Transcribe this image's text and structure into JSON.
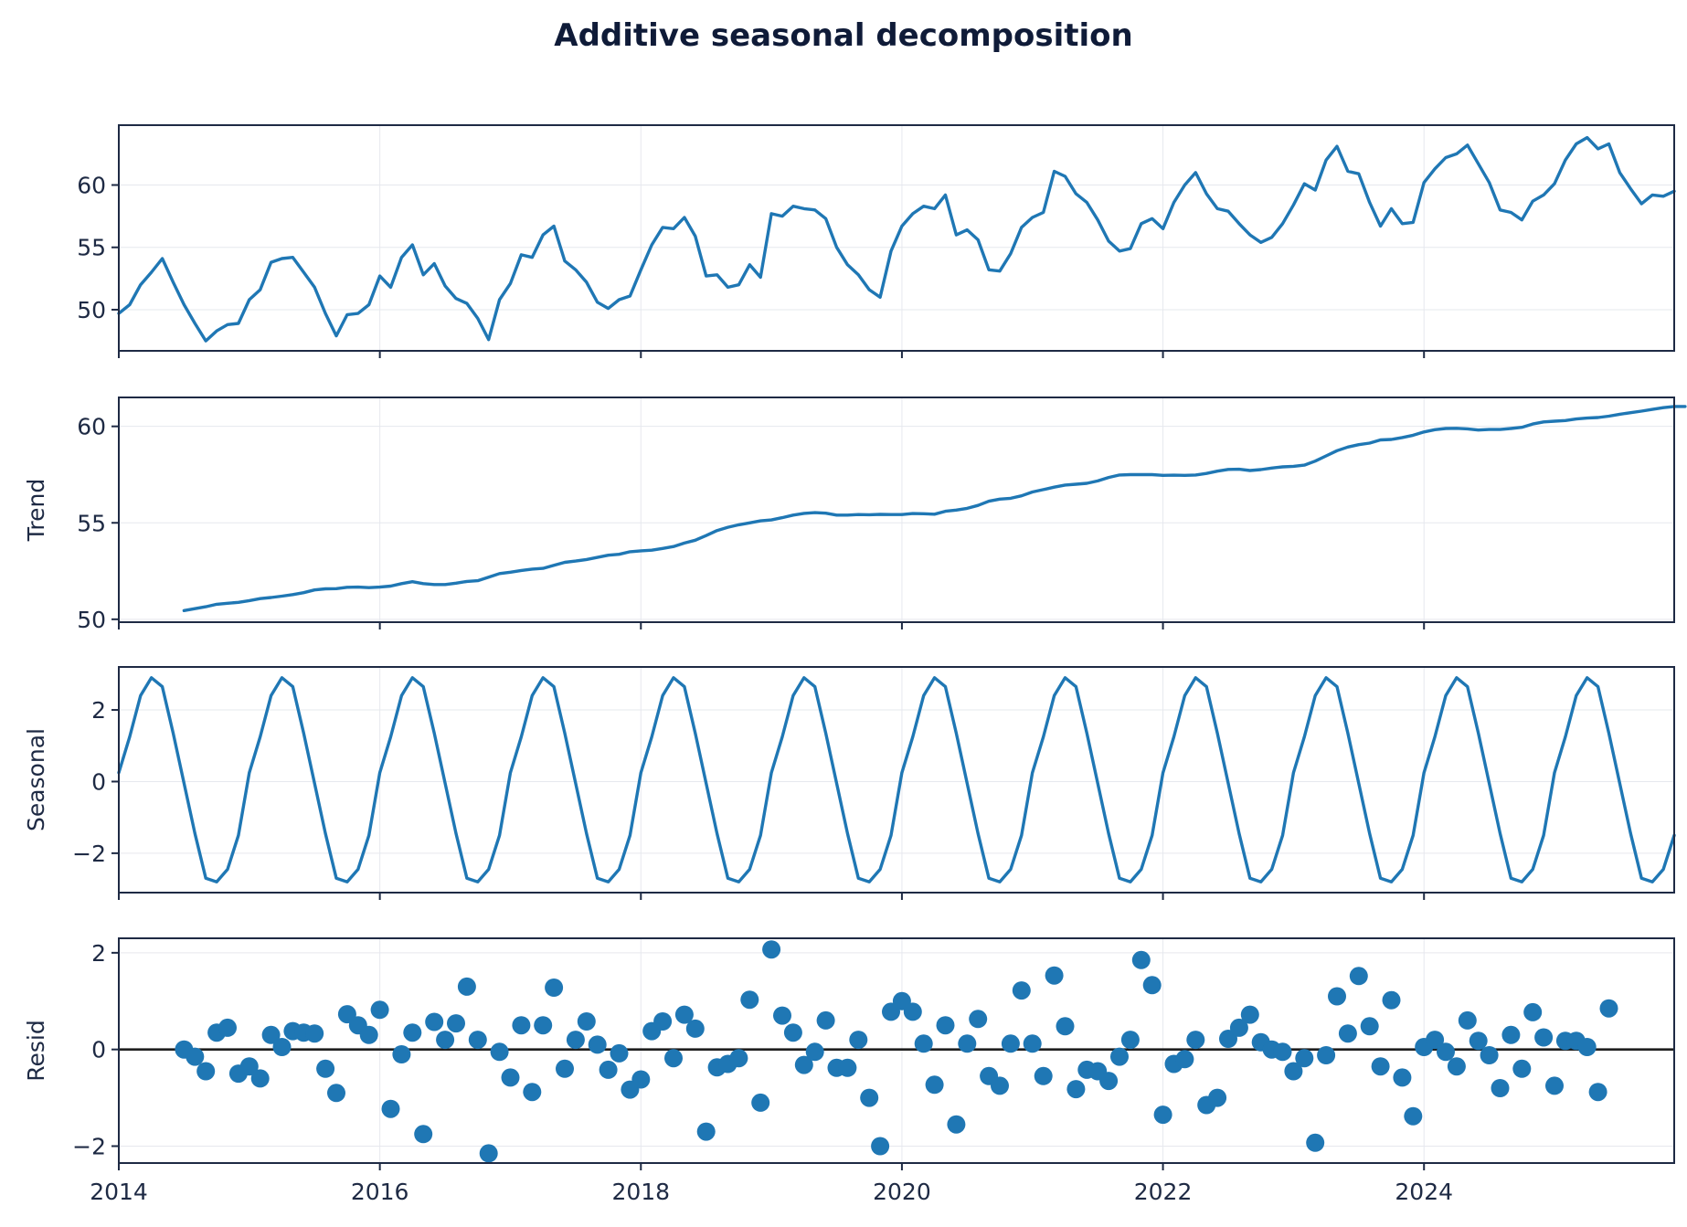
{
  "colors": {
    "series": "#1f77b4",
    "axis": "#1e2a44",
    "title": "#0f1b38",
    "grid": "#e6e8ee",
    "zero_line": "#1f1f1f"
  },
  "chart_data": {
    "type": "line",
    "title": "Additive seasonal decomposition",
    "x_start": "2014-01",
    "frequency": "monthly",
    "xlim": [
      2014.0,
      2025.917
    ],
    "x_ticks": [
      2014,
      2016,
      2018,
      2020,
      2022,
      2024
    ],
    "x_tick_labels": [
      "2014",
      "2016",
      "2018",
      "2020",
      "2022",
      "2024"
    ],
    "grid": true,
    "panels": [
      {
        "id": "observed",
        "ylabel": "",
        "kind": "line",
        "ylim": [
          46.7,
          64.8
        ],
        "y_ticks": [
          50,
          55,
          60
        ],
        "y_tick_labels": [
          "50",
          "55",
          "60"
        ],
        "values": [
          49.7,
          50.4,
          52.0,
          53.0,
          54.1,
          52.2,
          50.4,
          48.9,
          47.5,
          48.3,
          48.8,
          48.9,
          50.8,
          51.6,
          53.8,
          54.1,
          54.2,
          53.0,
          51.8,
          49.7,
          47.9,
          49.6,
          49.7,
          50.4,
          52.7,
          51.8,
          54.2,
          55.2,
          52.8,
          53.7,
          51.9,
          50.9,
          50.5,
          49.3,
          47.6,
          50.8,
          52.1,
          54.4,
          54.2,
          56.0,
          56.7,
          53.9,
          53.2,
          52.2,
          50.6,
          50.1,
          50.8,
          51.1,
          53.2,
          55.2,
          56.6,
          56.5,
          57.4,
          55.9,
          52.7,
          52.8,
          51.8,
          52.0,
          53.6,
          52.6,
          57.7,
          57.5,
          58.3,
          58.1,
          58.0,
          57.3,
          55.0,
          53.6,
          52.8,
          51.6,
          51.0,
          54.7,
          56.7,
          57.7,
          58.3,
          58.1,
          59.2,
          56.0,
          56.4,
          55.6,
          53.2,
          53.1,
          54.5,
          56.6,
          57.4,
          57.8,
          61.1,
          60.7,
          59.3,
          58.6,
          57.2,
          55.5,
          54.7,
          54.9,
          56.9,
          57.3,
          56.5,
          58.6,
          60.0,
          61.0,
          59.3,
          58.1,
          57.9,
          56.9,
          56.0,
          55.4,
          55.8,
          56.9,
          58.4,
          60.1,
          59.6,
          62.0,
          63.1,
          61.1,
          60.9,
          58.6,
          56.7,
          58.1,
          56.9,
          57.0,
          60.2,
          61.3,
          62.2,
          62.5,
          63.2,
          61.7,
          60.2,
          58.0,
          57.8,
          57.2,
          58.7,
          59.2,
          60.1,
          62.0,
          63.3,
          63.8,
          62.9,
          63.3,
          61.0,
          59.7,
          58.5,
          59.2,
          59.1,
          59.5
        ]
      },
      {
        "id": "trend",
        "ylabel": "Trend",
        "kind": "line",
        "ylim": [
          49.85,
          61.5
        ],
        "y_ticks": [
          50,
          55,
          60
        ],
        "y_tick_labels": [
          "50",
          "55",
          "60"
        ],
        "values": [
          null,
          null,
          null,
          null,
          null,
          null,
          50.45,
          50.55,
          50.65,
          50.78,
          50.83,
          50.88,
          50.97,
          51.07,
          51.13,
          51.2,
          51.28,
          51.38,
          51.52,
          51.58,
          51.59,
          51.66,
          51.67,
          51.64,
          51.67,
          51.72,
          51.85,
          51.95,
          51.85,
          51.8,
          51.8,
          51.87,
          51.96,
          52.0,
          52.18,
          52.37,
          52.44,
          52.53,
          52.6,
          52.64,
          52.8,
          52.95,
          53.02,
          53.1,
          53.21,
          53.32,
          53.37,
          53.5,
          53.55,
          53.58,
          53.67,
          53.77,
          53.95,
          54.1,
          54.34,
          54.6,
          54.77,
          54.9,
          55.0,
          55.1,
          55.15,
          55.27,
          55.4,
          55.49,
          55.53,
          55.5,
          55.4,
          55.4,
          55.43,
          55.42,
          55.44,
          55.43,
          55.43,
          55.48,
          55.47,
          55.45,
          55.6,
          55.66,
          55.75,
          55.9,
          56.12,
          56.23,
          56.27,
          56.4,
          56.6,
          56.72,
          56.85,
          56.96,
          57.0,
          57.05,
          57.17,
          57.35,
          57.48,
          57.5,
          57.5,
          57.5,
          57.46,
          57.47,
          57.46,
          57.48,
          57.56,
          57.68,
          57.77,
          57.78,
          57.71,
          57.76,
          57.84,
          57.9,
          57.93,
          57.99,
          58.2,
          58.47,
          58.74,
          58.93,
          59.05,
          59.13,
          59.3,
          59.32,
          59.42,
          59.54,
          59.71,
          59.83,
          59.89,
          59.9,
          59.87,
          59.81,
          59.84,
          59.84,
          59.89,
          59.95,
          60.12,
          60.23,
          60.27,
          60.3,
          60.38,
          60.43,
          60.46,
          60.53,
          60.63,
          60.71,
          60.79,
          60.88,
          60.97,
          61.03,
          61.03,
          null,
          null,
          null,
          null,
          null,
          null
        ]
      },
      {
        "id": "seasonal",
        "ylabel": "Seasonal",
        "kind": "line",
        "ylim": [
          -3.1,
          3.2
        ],
        "y_ticks": [
          -2,
          0,
          2
        ],
        "y_tick_labels": [
          "−2",
          "0",
          "2"
        ],
        "pattern_12": [
          0.25,
          1.25,
          2.4,
          2.9,
          2.65,
          1.35,
          -0.05,
          -1.45,
          -2.7,
          -2.8,
          -2.45,
          -1.5
        ],
        "cycles": 12
      },
      {
        "id": "resid",
        "ylabel": "Resid",
        "kind": "scatter",
        "ylim": [
          -2.35,
          2.3
        ],
        "y_ticks": [
          -2,
          0,
          2
        ],
        "y_tick_labels": [
          "−2",
          "0",
          "2"
        ],
        "zero_line": true,
        "values": [
          null,
          null,
          null,
          null,
          null,
          null,
          0.0,
          -0.15,
          -0.45,
          0.35,
          0.45,
          -0.5,
          -0.35,
          -0.6,
          0.3,
          0.05,
          0.38,
          0.35,
          0.33,
          -0.4,
          -0.9,
          0.73,
          0.5,
          0.3,
          0.82,
          -1.23,
          -0.1,
          0.35,
          -1.75,
          0.57,
          0.2,
          0.54,
          1.3,
          0.2,
          -2.15,
          -0.05,
          -0.58,
          0.5,
          -0.88,
          0.5,
          1.28,
          -0.4,
          0.2,
          0.58,
          0.1,
          -0.42,
          -0.08,
          -0.83,
          -0.62,
          0.38,
          0.58,
          -0.18,
          0.72,
          0.43,
          -1.7,
          -0.37,
          -0.3,
          -0.18,
          1.03,
          -1.1,
          2.07,
          0.7,
          0.35,
          -0.32,
          -0.05,
          0.6,
          -0.38,
          -0.38,
          0.2,
          -1.0,
          -2.0,
          0.78,
          1.0,
          0.78,
          0.12,
          -0.73,
          0.5,
          -1.55,
          0.12,
          0.63,
          -0.55,
          -0.75,
          0.12,
          1.22,
          0.12,
          -0.55,
          1.53,
          0.48,
          -0.82,
          -0.42,
          -0.45,
          -0.65,
          -0.15,
          0.2,
          1.85,
          1.33,
          -1.35,
          -0.3,
          -0.2,
          0.2,
          -1.15,
          -1.0,
          0.22,
          0.45,
          0.72,
          0.15,
          0.0,
          -0.05,
          -0.45,
          -0.18,
          -1.93,
          -0.12,
          1.1,
          0.33,
          1.52,
          0.48,
          -0.35,
          1.02,
          -0.58,
          -1.38,
          0.05,
          0.2,
          -0.05,
          -0.35,
          0.6,
          0.18,
          -0.12,
          -0.8,
          0.3,
          -0.4,
          0.77,
          0.25,
          -0.75,
          0.18,
          0.18,
          0.05,
          -0.88,
          0.85,
          null,
          null,
          null,
          null,
          null,
          null
        ]
      }
    ]
  }
}
